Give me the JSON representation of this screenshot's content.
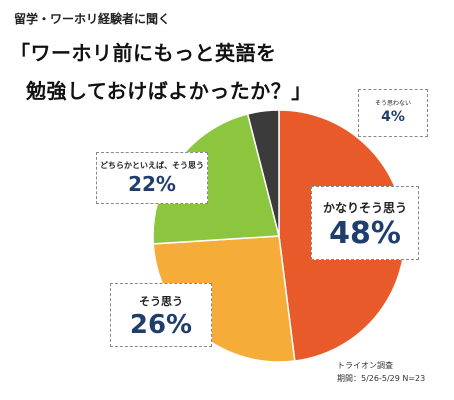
{
  "chart_data": {
    "type": "pie",
    "subtitle": "留学・ワーホリ経験者に聞く",
    "title_lines": [
      "「ワーホリ前にもっと英語を",
      "勉強しておけばよかったか？」"
    ],
    "slices": [
      {
        "label": "かなりそう思う",
        "value": 48,
        "value_label": "48%",
        "color": "#e85a2a"
      },
      {
        "label": "そう思う",
        "value": 26,
        "value_label": "26%",
        "color": "#f5ac38"
      },
      {
        "label": "どちらかといえば、そう思う",
        "value": 22,
        "value_label": "22%",
        "color": "#8cc63e"
      },
      {
        "label": "そう思わない",
        "value": 4,
        "value_label": "4%",
        "color": "#3b3b3b"
      }
    ],
    "legend": "none",
    "grid": false
  },
  "source": {
    "line1": "トライオン調査",
    "line2": "期間：5/26-5/29 N=23"
  }
}
